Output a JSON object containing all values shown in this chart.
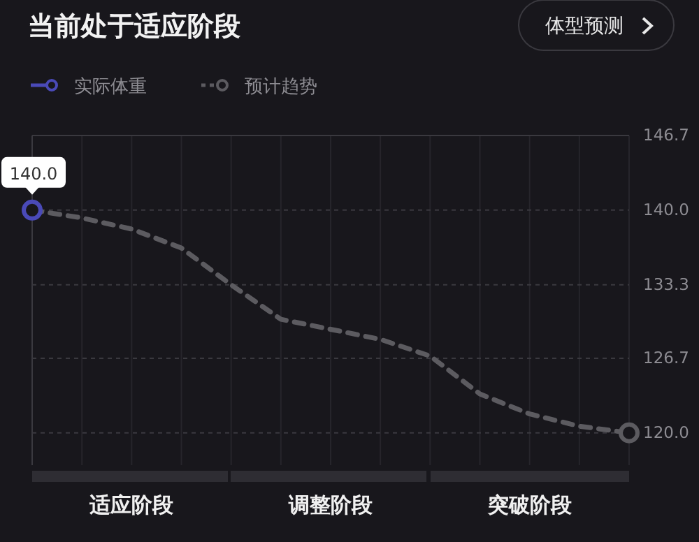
{
  "chart_data": {
    "type": "line",
    "title": "当前处于适应阶段",
    "annotations": [
      "体型预测"
    ],
    "legend": "top left",
    "grid": true,
    "line_style": "solid",
    "categories": [
      null,
      null,
      "适应阶段",
      null,
      null,
      null,
      "调整阶段",
      null,
      null,
      null,
      "突破阶段",
      null,
      null
    ],
    "ylim": [
      117.1,
      146.7
    ],
    "yticks": [
      {
        "value": 120,
        "label": "120.0"
      },
      {
        "value": 126.7,
        "label": "126.7"
      },
      {
        "value": 133.3,
        "label": "133.3"
      },
      {
        "value": 140,
        "label": "140.0"
      },
      {
        "value": 146.7,
        "label": "146.7"
      }
    ],
    "series": [
      {
        "name": "预计趋势",
        "color": "#5c5b60",
        "line_style": "dashed",
        "values": [
          140,
          139.3,
          138.3,
          136.6,
          133.3,
          130.2,
          129.3,
          128.4,
          126.9,
          123.5,
          121.7,
          120.6,
          120
        ]
      },
      {
        "name": "实际体重",
        "color": "#4a4ab8",
        "marker": "circle",
        "values": [
          140,
          null,
          null,
          null,
          null,
          null,
          null,
          null,
          null,
          null,
          null,
          null,
          null
        ],
        "value_labels": [
          "140.0",
          null,
          null,
          null,
          null,
          null,
          null,
          null,
          null,
          null,
          null,
          null,
          null
        ]
      }
    ]
  }
}
